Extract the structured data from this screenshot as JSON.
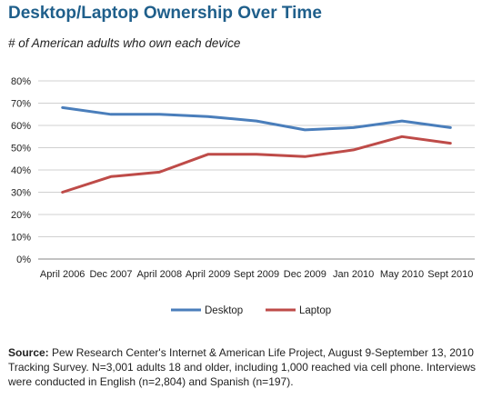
{
  "header": {
    "title": "Desktop/Laptop Ownership Over Time",
    "subtitle": "# of American adults who own each device"
  },
  "chart_data": {
    "type": "line",
    "categories": [
      "April 2006",
      "Dec 2007",
      "April 2008",
      "April 2009",
      "Sept 2009",
      "Dec 2009",
      "Jan 2010",
      "May 2010",
      "Sept 2010"
    ],
    "series": [
      {
        "name": "Desktop",
        "values": [
          68,
          65,
          65,
          64,
          62,
          58,
          59,
          62,
          59
        ],
        "color": "#4a7ebb"
      },
      {
        "name": "Laptop",
        "values": [
          30,
          37,
          39,
          47,
          47,
          46,
          49,
          55,
          52
        ],
        "color": "#be4b48"
      }
    ],
    "yticks": [
      "0%",
      "10%",
      "20%",
      "30%",
      "40%",
      "50%",
      "60%",
      "70%",
      "80%"
    ],
    "ylim": [
      0,
      80
    ],
    "xlabel": "",
    "ylabel": "",
    "grid": "horizontal",
    "legend": "bottom"
  },
  "footer": {
    "source_label": "Source:",
    "source_text": " Pew Research Center's Internet & American Life Project, August 9-September 13, 2010 Tracking Survey. N=3,001 adults 18 and older, including 1,000 reached via cell phone. Interviews were conducted in English (n=2,804) and Spanish (n=197)."
  }
}
